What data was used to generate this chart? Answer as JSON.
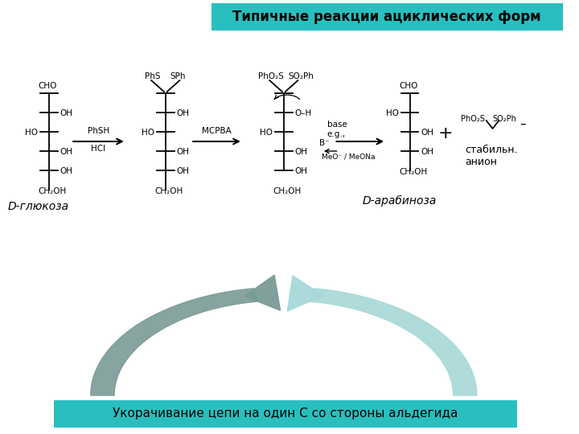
{
  "title": "Типичные реакции ациклических форм",
  "title_bg": "#29BFBF",
  "bottom_text": "Укорачивание цепи на один С со стороны альдегида",
  "bottom_bg": "#29BFBF",
  "label_d_glucose": "D-глюкоза",
  "label_d_arabinose": "D-арабиноза",
  "label_stable_anion": "стабильн.\nанион",
  "arrow1_label_top": "PhSH",
  "arrow1_label_bot": "HCl",
  "arrow2_label": "MCPBA",
  "arrow3_label_top": "base",
  "arrow3_label_mid": "e.g.,",
  "arrow3_label_bot": "MeO⁻ / MeONa",
  "arrow3_base_label": "B⁻",
  "bg_color": "#FFFFFF",
  "main_bg": "#FFFFFF",
  "left_arrow_color": "#7A9A96",
  "right_arrow_color": "#A8D8D8"
}
